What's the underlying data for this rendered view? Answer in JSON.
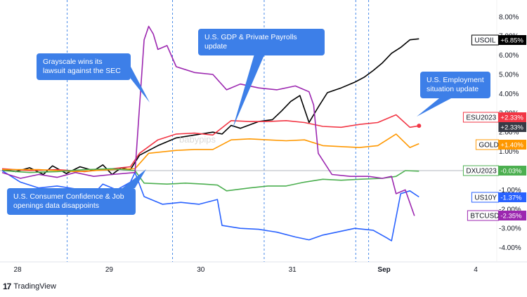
{
  "chart_data": {
    "type": "line",
    "x_ticks": [
      "28",
      "29",
      "30",
      "31",
      "Sep",
      "4"
    ],
    "y_ticks": [
      "8.00%",
      "7.00%",
      "6.00%",
      "5.00%",
      "4.00%",
      "3.00%",
      "2.00%",
      "1.00%",
      "0.00%",
      "-1.00%",
      "-2.00%",
      "-3.00%",
      "-4.00%"
    ],
    "ylim": [
      -4.5,
      8.5
    ],
    "zero_line": "0.00%",
    "event_lines": [
      "28 17:00",
      "29 14:00",
      "30 14:00",
      "31 14:00",
      "Sep 00:00"
    ],
    "series": [
      {
        "name": "USOIL",
        "label": "+6.85%",
        "color": "#000000",
        "values": [
          [
            0,
            0.05
          ],
          [
            0.15,
            -0.05
          ],
          [
            0.3,
            0.15
          ],
          [
            0.45,
            -0.2
          ],
          [
            0.55,
            0.25
          ],
          [
            0.7,
            -0.15
          ],
          [
            0.85,
            0.2
          ],
          [
            1.0,
            0.0
          ],
          [
            1.1,
            0.3
          ],
          [
            1.2,
            -0.2
          ],
          [
            1.3,
            0.15
          ],
          [
            1.4,
            0.05
          ],
          [
            1.5,
            0.8
          ],
          [
            1.7,
            1.3
          ],
          [
            1.9,
            1.7
          ],
          [
            2.1,
            1.85
          ],
          [
            2.3,
            2.0
          ],
          [
            2.4,
            1.9
          ],
          [
            2.5,
            2.35
          ],
          [
            2.6,
            2.2
          ],
          [
            2.8,
            2.55
          ],
          [
            2.95,
            2.65
          ],
          [
            3.05,
            3.1
          ],
          [
            3.15,
            3.6
          ],
          [
            3.25,
            3.9
          ],
          [
            3.35,
            2.5
          ],
          [
            3.45,
            3.3
          ],
          [
            3.55,
            4.05
          ],
          [
            3.7,
            4.3
          ],
          [
            3.85,
            4.6
          ],
          [
            3.95,
            4.85
          ],
          [
            4.05,
            5.2
          ],
          [
            4.15,
            5.6
          ],
          [
            4.25,
            6.1
          ],
          [
            4.35,
            6.4
          ],
          [
            4.45,
            6.8
          ],
          [
            4.55,
            6.85
          ]
        ]
      },
      {
        "name": "ESU2023",
        "label": "+2.33%",
        "color": "#f23645",
        "values": [
          [
            0,
            0.1
          ],
          [
            0.3,
            0.0
          ],
          [
            0.6,
            0.05
          ],
          [
            0.9,
            -0.05
          ],
          [
            1.2,
            0.1
          ],
          [
            1.4,
            0.2
          ],
          [
            1.5,
            0.9
          ],
          [
            1.7,
            1.6
          ],
          [
            1.9,
            1.9
          ],
          [
            2.1,
            1.95
          ],
          [
            2.3,
            1.85
          ],
          [
            2.5,
            2.6
          ],
          [
            2.7,
            2.55
          ],
          [
            2.9,
            2.55
          ],
          [
            3.1,
            2.6
          ],
          [
            3.3,
            2.5
          ],
          [
            3.5,
            2.3
          ],
          [
            3.7,
            2.25
          ],
          [
            3.9,
            2.4
          ],
          [
            4.1,
            2.5
          ],
          [
            4.3,
            2.9
          ],
          [
            4.45,
            2.25
          ],
          [
            4.55,
            2.33
          ]
        ]
      },
      {
        "name": "GOLD",
        "label": "+1.40%",
        "color": "#ff9800",
        "values": [
          [
            0,
            0.05
          ],
          [
            0.4,
            0.05
          ],
          [
            0.8,
            -0.05
          ],
          [
            1.2,
            0.05
          ],
          [
            1.45,
            0.1
          ],
          [
            1.6,
            0.9
          ],
          [
            1.9,
            1.05
          ],
          [
            2.1,
            1.1
          ],
          [
            2.3,
            1.1
          ],
          [
            2.5,
            1.6
          ],
          [
            2.7,
            1.65
          ],
          [
            2.9,
            1.6
          ],
          [
            3.1,
            1.55
          ],
          [
            3.3,
            1.6
          ],
          [
            3.5,
            1.3
          ],
          [
            3.7,
            1.25
          ],
          [
            3.9,
            1.2
          ],
          [
            4.1,
            1.3
          ],
          [
            4.3,
            1.9
          ],
          [
            4.45,
            1.2
          ],
          [
            4.55,
            1.4
          ]
        ]
      },
      {
        "name": "DXU2023",
        "label": "-0.03%",
        "color": "#4caf50",
        "values": [
          [
            0,
            0.0
          ],
          [
            0.3,
            -0.1
          ],
          [
            0.6,
            -0.05
          ],
          [
            0.9,
            0.05
          ],
          [
            1.2,
            0.1
          ],
          [
            1.45,
            0.0
          ],
          [
            1.55,
            -0.65
          ],
          [
            1.8,
            -0.7
          ],
          [
            2.0,
            -0.65
          ],
          [
            2.2,
            -0.7
          ],
          [
            2.35,
            -0.75
          ],
          [
            2.45,
            -1.05
          ],
          [
            2.7,
            -0.9
          ],
          [
            2.9,
            -0.8
          ],
          [
            3.1,
            -0.8
          ],
          [
            3.3,
            -0.6
          ],
          [
            3.5,
            -0.45
          ],
          [
            3.7,
            -0.5
          ],
          [
            3.9,
            -0.45
          ],
          [
            4.15,
            -0.4
          ],
          [
            4.3,
            -0.3
          ],
          [
            4.4,
            0.0
          ],
          [
            4.55,
            -0.03
          ]
        ]
      },
      {
        "name": "US10Y",
        "label": "-1.37%",
        "color": "#2962ff",
        "values": [
          [
            0,
            0.0
          ],
          [
            0.2,
            -0.6
          ],
          [
            0.4,
            -0.9
          ],
          [
            0.6,
            -0.8
          ],
          [
            0.8,
            -0.95
          ],
          [
            1.0,
            -1.2
          ],
          [
            1.1,
            -0.7
          ],
          [
            1.25,
            -1.0
          ],
          [
            1.4,
            -0.6
          ],
          [
            1.45,
            -0.1
          ],
          [
            1.55,
            -1.35
          ],
          [
            1.75,
            -1.75
          ],
          [
            1.95,
            -1.65
          ],
          [
            2.15,
            -1.75
          ],
          [
            2.35,
            -1.5
          ],
          [
            2.4,
            -2.85
          ],
          [
            2.6,
            -3.0
          ],
          [
            2.8,
            -3.05
          ],
          [
            3.0,
            -3.2
          ],
          [
            3.2,
            -3.45
          ],
          [
            3.35,
            -3.6
          ],
          [
            3.5,
            -3.35
          ],
          [
            3.65,
            -3.2
          ],
          [
            3.85,
            -3.0
          ],
          [
            4.05,
            -3.1
          ],
          [
            4.2,
            -3.5
          ],
          [
            4.25,
            -3.65
          ],
          [
            4.35,
            -1.2
          ],
          [
            4.45,
            -1.05
          ],
          [
            4.55,
            -1.37
          ]
        ]
      },
      {
        "name": "BTCUSD",
        "label": "-2.35%",
        "color": "#9c27b0",
        "values": [
          [
            0,
            -0.1
          ],
          [
            0.2,
            -0.4
          ],
          [
            0.4,
            -0.2
          ],
          [
            0.6,
            -0.35
          ],
          [
            0.8,
            -0.1
          ],
          [
            1.0,
            -0.3
          ],
          [
            1.2,
            -0.2
          ],
          [
            1.45,
            -0.1
          ],
          [
            1.55,
            6.8
          ],
          [
            1.6,
            7.5
          ],
          [
            1.65,
            7.1
          ],
          [
            1.7,
            6.3
          ],
          [
            1.8,
            6.5
          ],
          [
            1.9,
            5.4
          ],
          [
            2.1,
            5.1
          ],
          [
            2.3,
            5.0
          ],
          [
            2.45,
            4.2
          ],
          [
            2.6,
            4.5
          ],
          [
            2.8,
            4.3
          ],
          [
            3.0,
            4.2
          ],
          [
            3.2,
            4.4
          ],
          [
            3.35,
            4.1
          ],
          [
            3.4,
            3.4
          ],
          [
            3.45,
            0.9
          ],
          [
            3.6,
            -0.2
          ],
          [
            3.8,
            -0.3
          ],
          [
            4.0,
            -0.3
          ],
          [
            4.15,
            -0.4
          ],
          [
            4.25,
            -0.3
          ],
          [
            4.3,
            -1.2
          ],
          [
            4.4,
            -1.0
          ],
          [
            4.5,
            -2.35
          ]
        ]
      }
    ]
  },
  "annotations": [
    {
      "text": "Grayscale wins its lawsuit against the SEC"
    },
    {
      "text": "U.S. GDP & Private Payrolls update"
    },
    {
      "text": "U.S. Employment situation update"
    },
    {
      "text": "U.S. Consumer Confidence & Job openings data disappoints"
    }
  ],
  "extra_badge": {
    "label": "+2.33%",
    "color": "#363a45"
  },
  "watermark": "babypips",
  "branding": {
    "name": "TradingView"
  }
}
